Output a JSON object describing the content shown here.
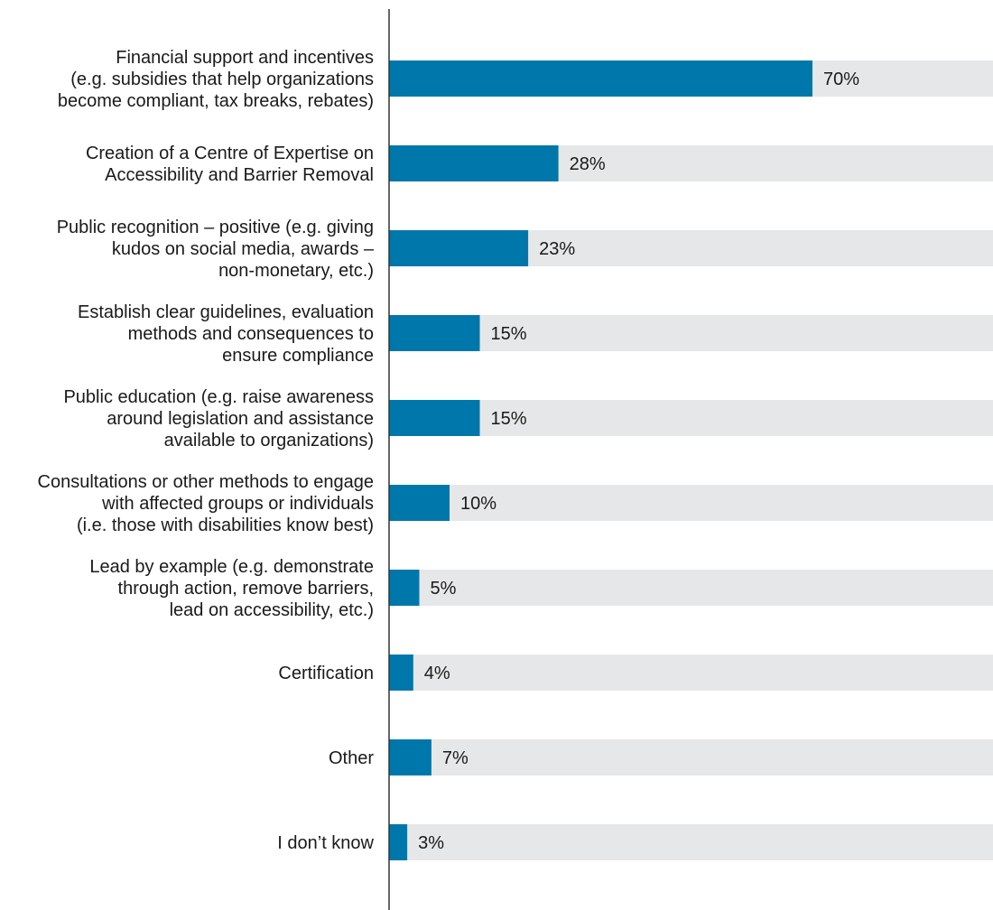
{
  "chart_data": {
    "type": "bar",
    "orientation": "horizontal",
    "categories": [
      [
        "Financial support and incentives",
        "(e.g. subsidies that help organizations",
        "become compliant, tax breaks, rebates)"
      ],
      [
        "Creation of a Centre of Expertise on",
        "Accessibility and Barrier Removal"
      ],
      [
        "Public recognition – positive (e.g. giving",
        "kudos on social media, awards –",
        "non-monetary, etc.)"
      ],
      [
        "Establish clear guidelines, evaluation",
        "methods and consequences to",
        "ensure compliance"
      ],
      [
        "Public education (e.g. raise awareness",
        "around legislation and assistance",
        "available to organizations)"
      ],
      [
        "Consultations or other methods to engage",
        "with affected groups or individuals",
        "(i.e. those with disabilities know best)"
      ],
      [
        "Lead by example (e.g. demonstrate",
        "through action, remove barriers,",
        "lead on accessibility, etc.)"
      ],
      [
        "Certification"
      ],
      [
        "Other"
      ],
      [
        "I don’t know"
      ]
    ],
    "values": [
      70,
      28,
      23,
      15,
      15,
      10,
      5,
      4,
      7,
      3
    ],
    "value_labels": [
      "70%",
      "28%",
      "23%",
      "15%",
      "15%",
      "10%",
      "5%",
      "4%",
      "7%",
      "3%"
    ],
    "xlim": [
      0,
      100
    ],
    "grid": false,
    "legend": "none",
    "colors": {
      "bar": "#0077aa",
      "track": "#e6e7e8",
      "axis": "#333333",
      "text": "#1a1a1a"
    }
  }
}
